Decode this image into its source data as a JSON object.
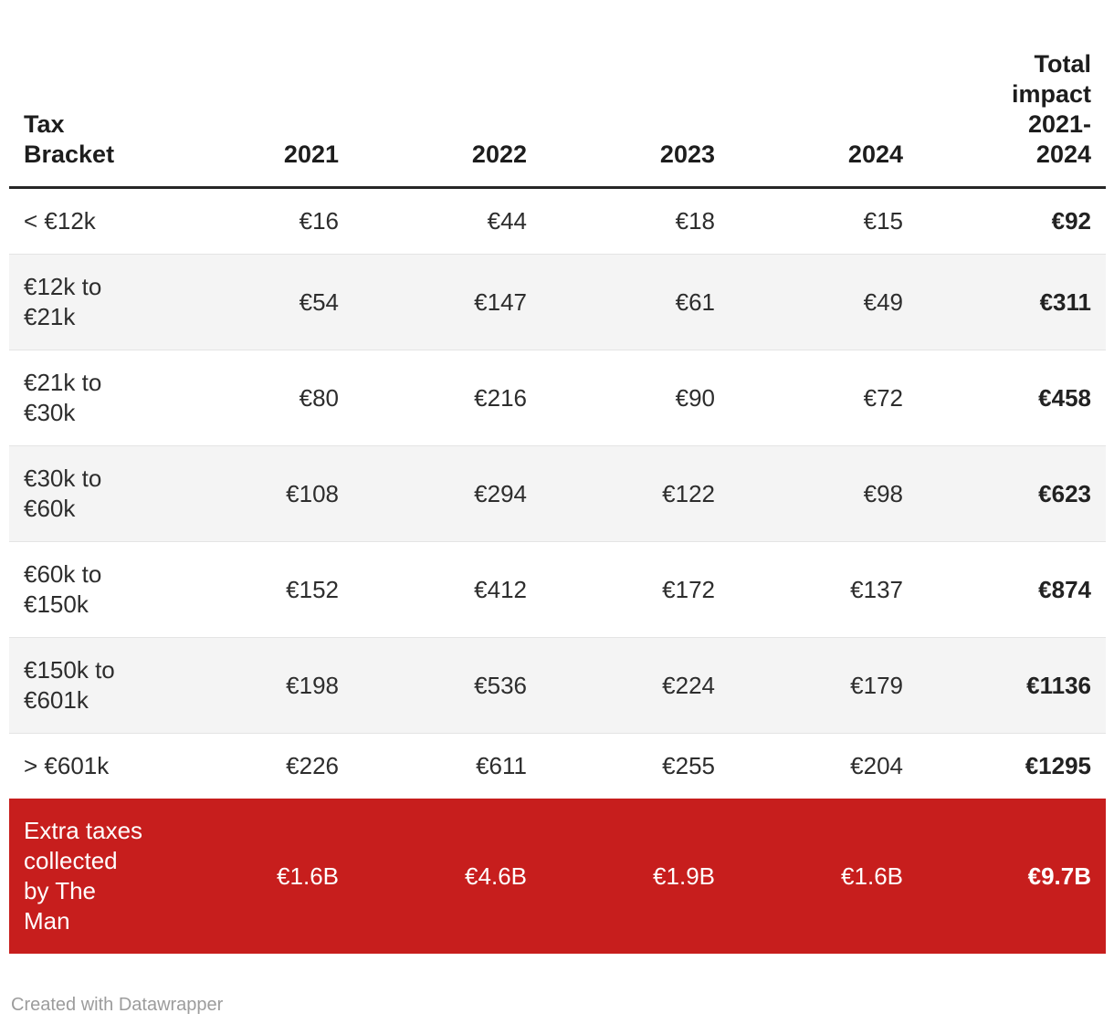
{
  "meta": {
    "credit": "Created with Datawrapper"
  },
  "colors": {
    "highlight_row_bg": "#c71e1d",
    "highlight_row_text": "#ffffff",
    "stripe_bg": "#f4f4f4",
    "header_rule": "#262626",
    "row_divider": "#e4e4e4",
    "body_text": "#2d2d2d",
    "credit_text": "#9c9c9c"
  },
  "table": {
    "columns": [
      {
        "label": "Tax\nBracket",
        "align": "left"
      },
      {
        "label": "2021",
        "align": "right"
      },
      {
        "label": "2022",
        "align": "right"
      },
      {
        "label": "2023",
        "align": "right"
      },
      {
        "label": "2024",
        "align": "right"
      },
      {
        "label": "Total\nimpact\n2021-\n2024",
        "align": "right"
      }
    ],
    "rows": [
      {
        "bracket": "< €12k",
        "y2021": "€16",
        "y2022": "€44",
        "y2023": "€18",
        "y2024": "€15",
        "total": "€92",
        "highlight": false
      },
      {
        "bracket": "€12k to\n€21k",
        "y2021": "€54",
        "y2022": "€147",
        "y2023": "€61",
        "y2024": "€49",
        "total": "€311",
        "highlight": false
      },
      {
        "bracket": "€21k to\n€30k",
        "y2021": "€80",
        "y2022": "€216",
        "y2023": "€90",
        "y2024": "€72",
        "total": "€458",
        "highlight": false
      },
      {
        "bracket": "€30k to\n€60k",
        "y2021": "€108",
        "y2022": "€294",
        "y2023": "€122",
        "y2024": "€98",
        "total": "€623",
        "highlight": false
      },
      {
        "bracket": "€60k to\n€150k",
        "y2021": "€152",
        "y2022": "€412",
        "y2023": "€172",
        "y2024": "€137",
        "total": "€874",
        "highlight": false
      },
      {
        "bracket": "€150k to\n€601k",
        "y2021": "€198",
        "y2022": "€536",
        "y2023": "€224",
        "y2024": "€179",
        "total": "€1136",
        "highlight": false
      },
      {
        "bracket": "> €601k",
        "y2021": "€226",
        "y2022": "€611",
        "y2023": "€255",
        "y2024": "€204",
        "total": "€1295",
        "highlight": false
      },
      {
        "bracket": "Extra taxes\ncollected\nby The\nMan",
        "y2021": "€1.6B",
        "y2022": "€4.6B",
        "y2023": "€1.9B",
        "y2024": "€1.6B",
        "total": "€9.7B",
        "highlight": true
      }
    ]
  },
  "chart_data": {
    "type": "table",
    "title": "",
    "categories": [
      "< €12k",
      "€12k to €21k",
      "€21k to €30k",
      "€30k to €60k",
      "€60k to €150k",
      "€150k to €601k",
      "> €601k",
      "Extra taxes collected by The Man"
    ],
    "series": [
      {
        "name": "2021",
        "values": [
          "€16",
          "€54",
          "€80",
          "€108",
          "€152",
          "€198",
          "€226",
          "€1.6B"
        ]
      },
      {
        "name": "2022",
        "values": [
          "€44",
          "€147",
          "€216",
          "€294",
          "€412",
          "€536",
          "€611",
          "€4.6B"
        ]
      },
      {
        "name": "2023",
        "values": [
          "€18",
          "€61",
          "€90",
          "€122",
          "€172",
          "€224",
          "€255",
          "€1.9B"
        ]
      },
      {
        "name": "2024",
        "values": [
          "€15",
          "€49",
          "€72",
          "€98",
          "€137",
          "€179",
          "€204",
          "€1.6B"
        ]
      },
      {
        "name": "Total impact 2021-2024",
        "values": [
          "€92",
          "€311",
          "€458",
          "€623",
          "€874",
          "€1136",
          "€1295",
          "€9.7B"
        ]
      }
    ],
    "layout_hints": {
      "striped_rows": true,
      "totals_column_bold": true,
      "last_row_highlighted_red": true
    }
  }
}
